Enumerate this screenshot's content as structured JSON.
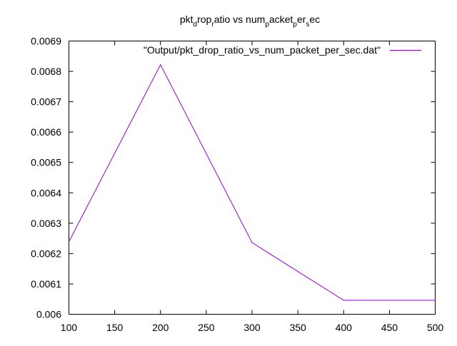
{
  "chart_data": {
    "type": "line",
    "title_parts": [
      {
        "text": "pkt",
        "sub": false
      },
      {
        "text": "d",
        "sub": true
      },
      {
        "text": "rop",
        "sub": false
      },
      {
        "text": "r",
        "sub": true
      },
      {
        "text": "atio vs num",
        "sub": false
      },
      {
        "text": "p",
        "sub": true
      },
      {
        "text": "acket",
        "sub": false
      },
      {
        "text": "p",
        "sub": true
      },
      {
        "text": "er",
        "sub": false
      },
      {
        "text": "s",
        "sub": true
      },
      {
        "text": "ec",
        "sub": false
      }
    ],
    "xlim": [
      100,
      500
    ],
    "ylim": [
      0.006,
      0.0069
    ],
    "x_ticks": [
      "100",
      "150",
      "200",
      "250",
      "300",
      "350",
      "400",
      "450",
      "500"
    ],
    "y_ticks": [
      "0.006",
      "0.0061",
      "0.0062",
      "0.0063",
      "0.0064",
      "0.0065",
      "0.0066",
      "0.0067",
      "0.0068",
      "0.0069"
    ],
    "grid": false,
    "legend_position": "top-right",
    "series": [
      {
        "name": "\"Output/pkt_drop_ratio_vs_num_packet_per_sec.dat\"",
        "color": "#9400d3",
        "x": [
          100,
          200,
          300,
          400,
          500
        ],
        "y": [
          0.006239,
          0.006822,
          0.006236,
          0.006046,
          0.006046
        ]
      }
    ]
  }
}
